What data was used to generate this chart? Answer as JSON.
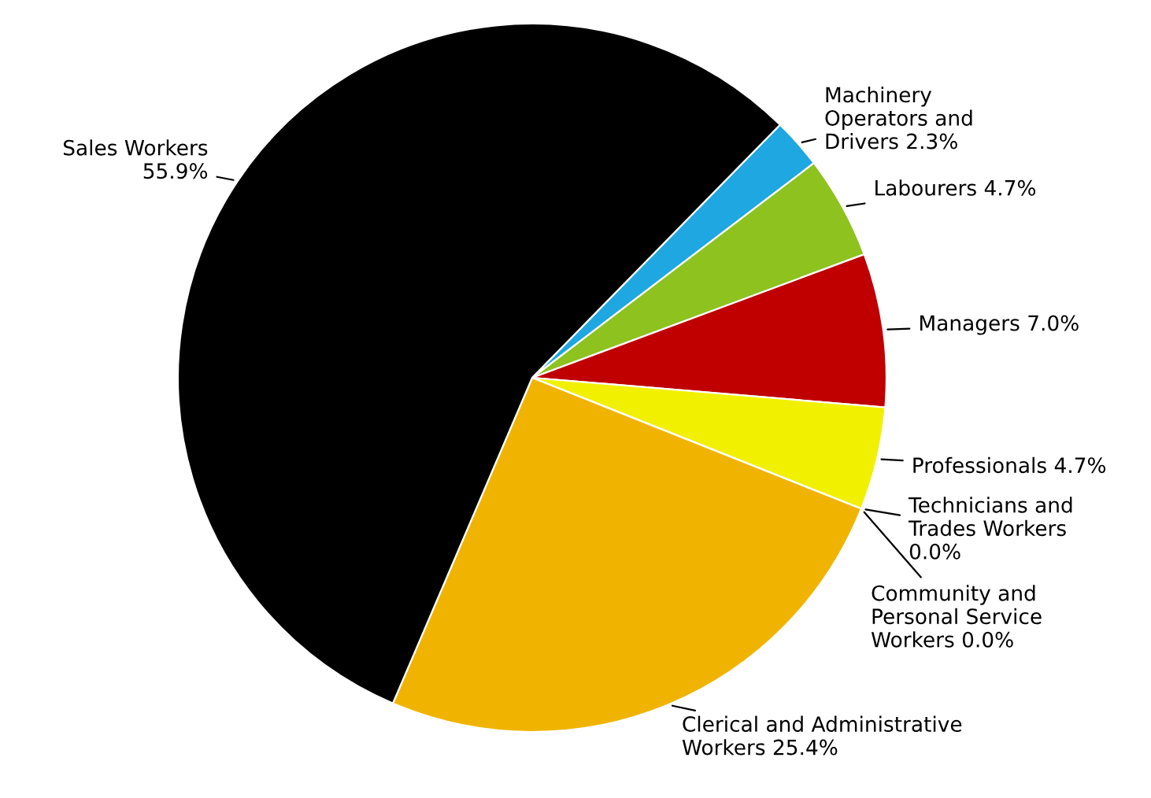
{
  "chart_data": {
    "type": "pie",
    "categories": [
      "Machinery\nOperators and\nDrivers",
      "Labourers",
      "Managers",
      "Professionals",
      "Technicians and\nTrades Workers\n",
      "Community and\nPersonal Service\nWorkers",
      "Clerical and Administrative\nWorkers",
      "Sales Workers\n"
    ],
    "values": [
      2.3,
      4.7,
      7.0,
      4.7,
      0.0,
      0.0,
      25.4,
      55.9
    ],
    "value_labels": [
      "2.3%",
      "4.7%",
      "7.0%",
      "4.7%",
      "0.0%",
      "0.0%",
      "25.4%",
      "55.9%"
    ],
    "colors": [
      "#1ea7e1",
      "#8dc21f",
      "#c00000",
      "#f0f000",
      "#7f7f7f",
      "#4f81bd",
      "#f0b400",
      "#000000"
    ]
  }
}
